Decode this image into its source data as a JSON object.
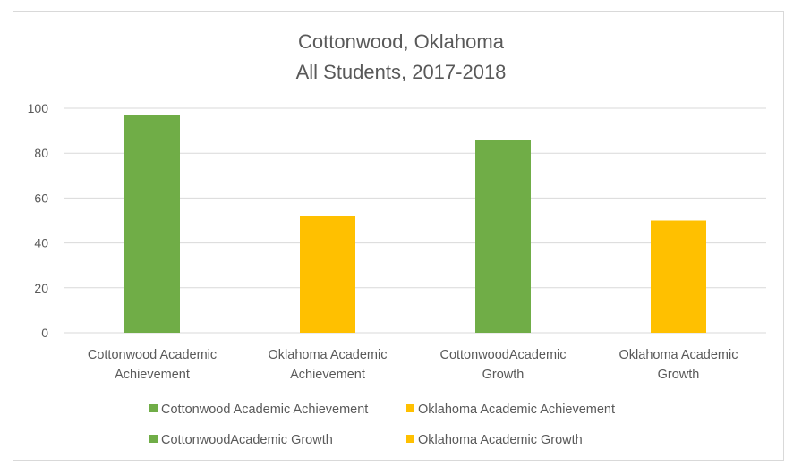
{
  "chart_data": {
    "type": "bar",
    "title_lines": [
      "Cottonwood, Oklahoma",
      "All Students, 2017-2018"
    ],
    "xlabel": "",
    "ylabel": "",
    "ylim": [
      0,
      100
    ],
    "yticks": [
      0,
      20,
      40,
      60,
      80,
      100
    ],
    "grid": true,
    "legend_position": "bottom",
    "categories": [
      [
        "Cottonwood Academic",
        "Achievement"
      ],
      [
        "Oklahoma Academic",
        "Achievement"
      ],
      [
        "CottonwoodAcademic",
        "Growth"
      ],
      [
        "Oklahoma Academic",
        "Growth"
      ]
    ],
    "series": [
      {
        "name": "Cottonwood Academic Achievement",
        "color": "#70ad47",
        "category_index": 0,
        "value": 97
      },
      {
        "name": "Oklahoma Academic Achievement",
        "color": "#ffc000",
        "category_index": 1,
        "value": 52
      },
      {
        "name": "CottonwoodAcademic Growth",
        "color": "#70ad47",
        "category_index": 2,
        "value": 86
      },
      {
        "name": "Oklahoma Academic Growth",
        "color": "#ffc000",
        "category_index": 3,
        "value": 50
      }
    ]
  }
}
